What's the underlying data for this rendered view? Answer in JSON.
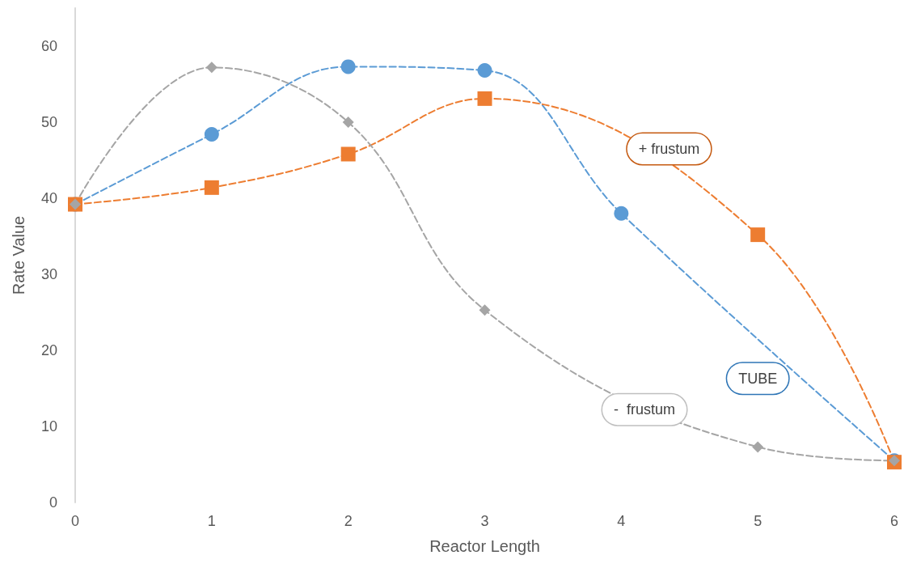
{
  "chart_data": {
    "type": "line",
    "xlabel": "Reactor Length",
    "ylabel": "Rate Value",
    "x": [
      0,
      1,
      2,
      3,
      4,
      5,
      6
    ],
    "series": [
      {
        "name": "TUBE",
        "color": "#5b9bd5",
        "marker": "circle",
        "values": [
          39.2,
          48.4,
          57.3,
          56.8,
          38.0,
          null,
          5.5
        ]
      },
      {
        "name": "+ frustum",
        "color": "#ed7d31",
        "marker": "square",
        "values": [
          39.2,
          41.4,
          45.8,
          53.1,
          null,
          35.2,
          5.3
        ]
      },
      {
        "name": "-  frustum",
        "color": "#a5a5a5",
        "marker": "diamond",
        "values": [
          39.2,
          57.2,
          50.0,
          25.3,
          null,
          7.3,
          5.5
        ]
      }
    ],
    "xlim": [
      0,
      6
    ],
    "xticks": [
      0,
      1,
      2,
      3,
      4,
      5,
      6
    ],
    "ylim": [
      0,
      65
    ],
    "yticks": [
      0,
      10,
      20,
      30,
      40,
      50,
      60
    ],
    "grid": false,
    "legend": false,
    "line_style": "dashed"
  }
}
